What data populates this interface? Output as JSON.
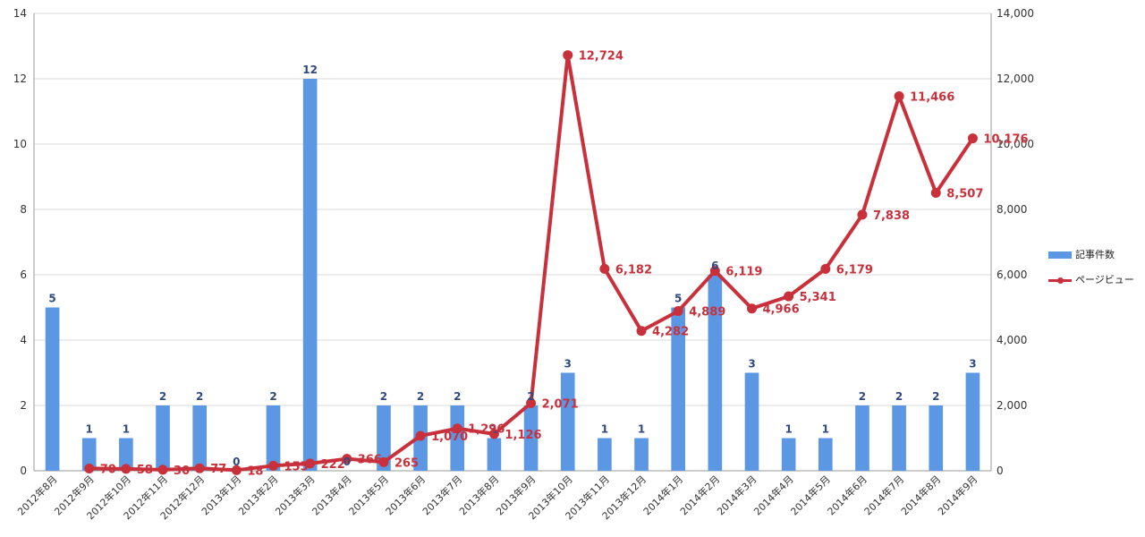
{
  "chart_data": {
    "type": "bar",
    "categories": [
      "2012年8月",
      "2012年9月",
      "2012年10月",
      "2012年11月",
      "2012年12月",
      "2013年1月",
      "2013年2月",
      "2013年3月",
      "2013年4月",
      "2013年5月",
      "2013年6月",
      "2013年7月",
      "2013年8月",
      "2013年9月",
      "2013年10月",
      "2013年11月",
      "2013年12月",
      "2014年1月",
      "2014年2月",
      "2014年3月",
      "2014年4月",
      "2014年5月",
      "2014年6月",
      "2014年7月",
      "2014年8月",
      "2014年9月"
    ],
    "series": [
      {
        "name": "記事件数",
        "type": "bar",
        "axis": "left",
        "color": "#5b97e2",
        "label_color": "#2e4a7f",
        "values": [
          5,
          1,
          1,
          2,
          2,
          0,
          2,
          12,
          0,
          2,
          2,
          2,
          1,
          2,
          3,
          1,
          1,
          5,
          6,
          3,
          1,
          1,
          2,
          2,
          2,
          3
        ]
      },
      {
        "name": "ページビュー",
        "type": "line",
        "axis": "right",
        "color": "#c8313c",
        "label_color": "#c8313c",
        "values": [
          null,
          70,
          58,
          30,
          77,
          18,
          155,
          222,
          366,
          265,
          1070,
          1296,
          1126,
          2071,
          12724,
          6182,
          4282,
          4889,
          6119,
          4966,
          5341,
          6179,
          7838,
          11466,
          8507,
          10176
        ],
        "labels": [
          null,
          "70",
          "58",
          "30",
          "77",
          "18",
          "155",
          "222",
          "366",
          "265",
          "1,070",
          "1,296",
          "1,126",
          "2,071",
          "12,724",
          "6,182",
          "4,282",
          "4,889",
          "6,119",
          "4,966",
          "5,341",
          "6,179",
          "7,838",
          "11,466",
          "8,507",
          "10,176"
        ]
      }
    ],
    "y_left": {
      "min": 0,
      "max": 14,
      "ticks": [
        0,
        2,
        4,
        6,
        8,
        10,
        12,
        14
      ],
      "tick_labels": [
        "0",
        "2",
        "4",
        "6",
        "8",
        "10",
        "12",
        "14"
      ]
    },
    "y_right": {
      "min": 0,
      "max": 14000,
      "ticks": [
        0,
        2000,
        4000,
        6000,
        8000,
        10000,
        12000,
        14000
      ],
      "tick_labels": [
        "0",
        "2,000",
        "4,000",
        "6,000",
        "8,000",
        "10,000",
        "12,000",
        "14,000"
      ]
    },
    "grid": true,
    "legend": "right",
    "title": "",
    "xlabel": "",
    "ylabel": "",
    "axis_color": "#999999",
    "grid_color": "#d9d9d9",
    "text_color": "#333333"
  },
  "legend": {
    "items": [
      {
        "label": "記事件数",
        "color": "#5b97e2",
        "kind": "bar"
      },
      {
        "label": "ページビュー",
        "color": "#c8313c",
        "kind": "line"
      }
    ]
  }
}
